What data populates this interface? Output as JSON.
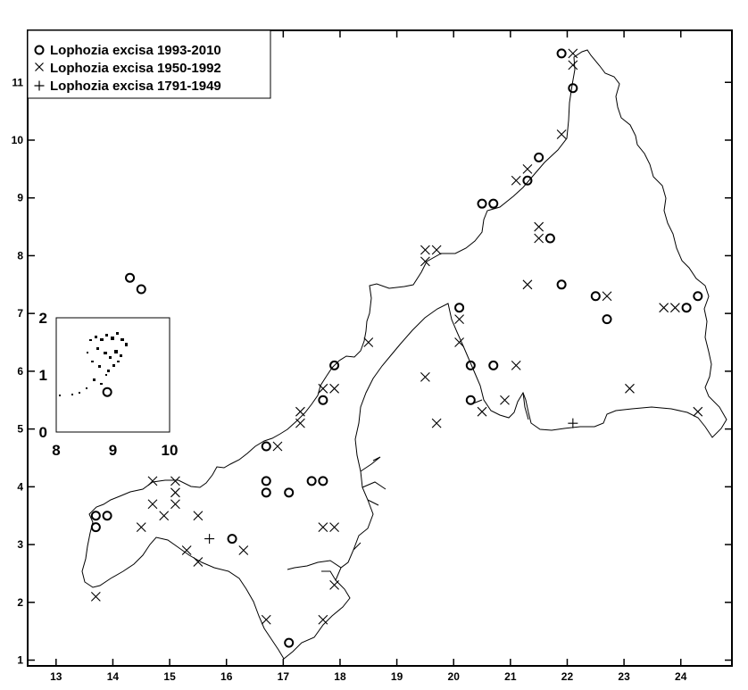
{
  "legend": {
    "entries": [
      {
        "marker": "circle",
        "label": "Lophozia excisa 1993-2010"
      },
      {
        "marker": "x",
        "label": "Lophozia excisa 1950-1992"
      },
      {
        "marker": "plus",
        "label": "Lophozia excisa 1791-1949"
      }
    ]
  },
  "axes": {
    "x": {
      "range": [
        12.5,
        24.9
      ],
      "ticks": [
        "13",
        "14",
        "15",
        "16",
        "17",
        "18",
        "19",
        "20",
        "21",
        "22",
        "23",
        "24"
      ]
    },
    "y": {
      "range": [
        0.9,
        11.9
      ],
      "ticks": [
        "1",
        "2",
        "3",
        "4",
        "5",
        "6",
        "7",
        "8",
        "9",
        "10",
        "11"
      ]
    }
  },
  "inset": {
    "x_ticks": [
      "8",
      "9",
      "10"
    ],
    "y_ticks": [
      "0",
      "1",
      "2"
    ]
  },
  "points": {
    "circle": [
      [
        21.9,
        11.5
      ],
      [
        22.1,
        10.9
      ],
      [
        21.5,
        9.7
      ],
      [
        21.3,
        9.3
      ],
      [
        20.5,
        8.9
      ],
      [
        20.7,
        8.9
      ],
      [
        21.7,
        8.3
      ],
      [
        21.9,
        7.5
      ],
      [
        22.5,
        7.3
      ],
      [
        22.7,
        6.9
      ],
      [
        24.1,
        7.1
      ],
      [
        24.3,
        7.3
      ],
      [
        20.1,
        7.1
      ],
      [
        20.3,
        6.1
      ],
      [
        20.7,
        6.1
      ],
      [
        20.3,
        5.5
      ],
      [
        17.9,
        6.1
      ],
      [
        17.7,
        5.5
      ],
      [
        16.7,
        4.7
      ],
      [
        16.7,
        4.1
      ],
      [
        16.7,
        3.9
      ],
      [
        17.1,
        3.9
      ],
      [
        17.5,
        4.1
      ],
      [
        17.7,
        4.1
      ],
      [
        16.1,
        3.1
      ],
      [
        13.7,
        3.5
      ],
      [
        13.9,
        3.5
      ],
      [
        13.7,
        3.3
      ],
      [
        17.1,
        1.3
      ]
    ],
    "x": [
      [
        22.1,
        11.5
      ],
      [
        22.1,
        11.3
      ],
      [
        21.9,
        10.1
      ],
      [
        21.1,
        9.3
      ],
      [
        21.3,
        9.5
      ],
      [
        19.5,
        8.1
      ],
      [
        19.5,
        7.9
      ],
      [
        19.7,
        8.1
      ],
      [
        21.5,
        8.5
      ],
      [
        21.5,
        8.3
      ],
      [
        21.3,
        7.5
      ],
      [
        22.7,
        7.3
      ],
      [
        23.7,
        7.1
      ],
      [
        23.9,
        7.1
      ],
      [
        20.1,
        6.9
      ],
      [
        20.1,
        6.5
      ],
      [
        21.1,
        6.1
      ],
      [
        20.5,
        5.3
      ],
      [
        20.9,
        5.5
      ],
      [
        19.5,
        5.9
      ],
      [
        19.7,
        5.1
      ],
      [
        23.1,
        5.7
      ],
      [
        24.3,
        5.3
      ],
      [
        18.5,
        6.5
      ],
      [
        17.7,
        5.7
      ],
      [
        17.9,
        5.7
      ],
      [
        17.3,
        5.3
      ],
      [
        17.3,
        5.1
      ],
      [
        16.9,
        4.7
      ],
      [
        14.7,
        4.1
      ],
      [
        15.1,
        4.1
      ],
      [
        15.1,
        3.9
      ],
      [
        14.7,
        3.7
      ],
      [
        15.1,
        3.7
      ],
      [
        14.9,
        3.5
      ],
      [
        15.5,
        3.5
      ],
      [
        14.5,
        3.3
      ],
      [
        15.3,
        2.9
      ],
      [
        15.5,
        2.7
      ],
      [
        16.3,
        2.9
      ],
      [
        17.7,
        3.3
      ],
      [
        17.9,
        3.3
      ],
      [
        17.9,
        2.3
      ],
      [
        16.7,
        1.7
      ],
      [
        17.7,
        1.7
      ],
      [
        13.7,
        2.1
      ]
    ],
    "plus": [
      [
        15.7,
        3.1
      ],
      [
        22.1,
        5.1
      ]
    ]
  },
  "inset_points": {
    "circle": [
      [
        9.3,
        2.7
      ],
      [
        9.5,
        2.5
      ],
      [
        8.9,
        0.7
      ]
    ]
  }
}
